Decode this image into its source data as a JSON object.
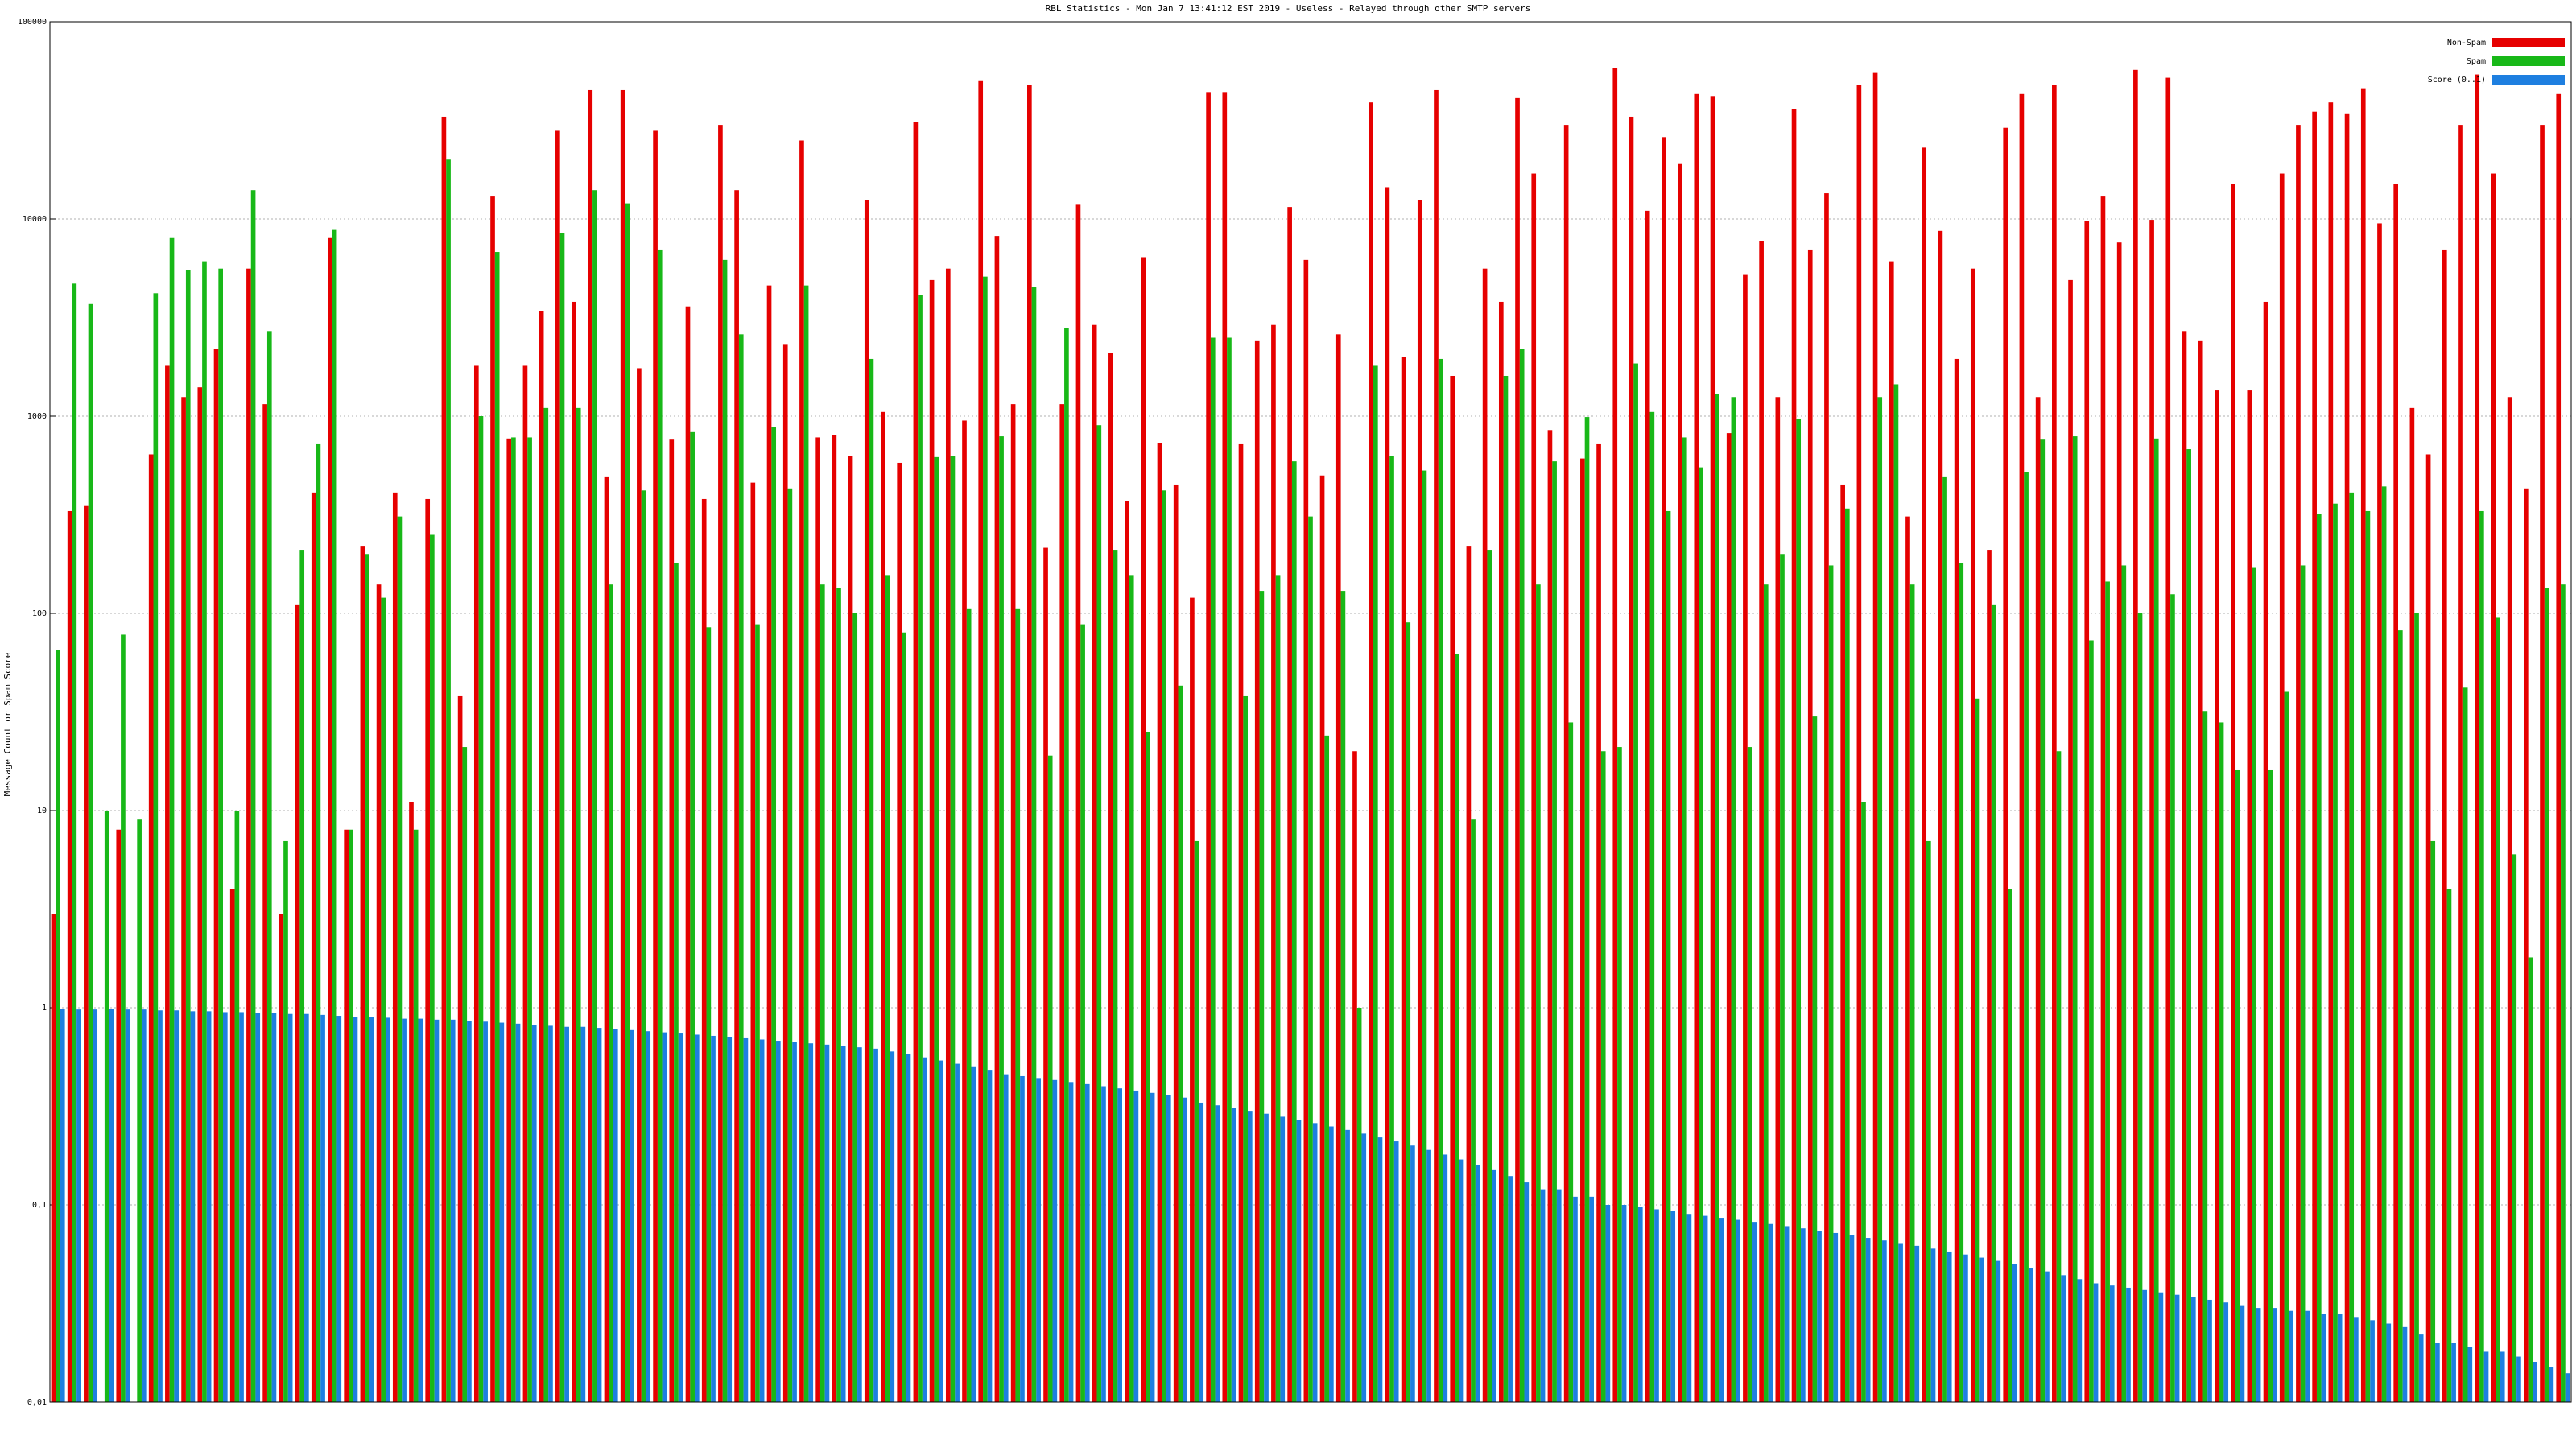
{
  "chart_data": {
    "type": "bar",
    "title": "RBL Statistics - Mon Jan  7 13:41:12 EST 2019 - Useless - Relayed through other SMTP servers",
    "y_label": "Message Count or Spam Score",
    "log_y": true,
    "grid": true,
    "legend": "top-right",
    "ylim": [
      0.01,
      100000
    ],
    "yticks": [
      {
        "value": 0.01,
        "label": "0,01"
      },
      {
        "value": 0.1,
        "label": "0,1"
      },
      1,
      10,
      100,
      1000,
      10000,
      100000
    ],
    "categories": [
      null,
      null,
      null,
      null,
      null,
      null,
      null,
      null,
      null,
      null,
      null,
      null,
      null,
      null,
      null,
      null,
      null,
      null,
      null,
      null,
      null,
      null,
      null,
      null,
      null,
      null,
      null,
      null,
      null,
      null,
      null,
      null,
      null,
      null,
      null,
      null,
      null,
      null,
      null,
      null,
      null,
      null,
      null,
      null,
      null,
      null,
      null,
      null,
      null,
      null,
      null,
      null,
      null,
      null,
      null,
      null,
      null,
      null,
      null,
      null,
      null,
      null,
      null,
      null,
      null,
      null,
      null,
      null,
      null,
      null,
      null,
      null,
      null,
      null,
      null,
      null,
      null,
      null,
      null,
      null,
      null,
      null,
      null,
      null,
      null,
      null,
      null,
      null,
      null,
      null,
      null,
      null,
      null,
      null,
      null,
      null,
      null,
      null,
      null,
      null,
      null,
      null,
      null,
      null,
      null,
      null,
      null,
      null,
      null,
      null,
      null,
      null,
      null,
      null,
      null,
      null,
      null,
      null,
      null,
      null,
      null,
      null,
      null,
      null,
      null,
      null,
      null,
      null,
      null,
      null,
      null,
      null,
      null,
      null,
      null,
      null,
      null,
      null,
      null,
      null,
      null,
      null,
      null,
      null,
      null,
      null,
      null,
      null,
      null,
      null,
      null,
      null,
      null,
      null,
      null
    ],
    "series": [
      {
        "name": "Non-Spam",
        "color": "#e60000",
        "values": [
          3,
          330,
          350,
          null,
          8,
          null,
          640,
          1800,
          1250,
          1400,
          2200,
          4,
          5600,
          1150,
          3,
          110,
          410,
          8000,
          8,
          220,
          140,
          410,
          11,
          380,
          33000,
          38,
          1800,
          13000,
          770,
          1800,
          3400,
          28000,
          3800,
          45000,
          490,
          45000,
          1750,
          28000,
          760,
          3600,
          380,
          30000,
          14000,
          460,
          4600,
          2300,
          25000,
          780,
          800,
          630,
          12500,
          1050,
          580,
          31000,
          4900,
          5600,
          950,
          50000,
          8200,
          1150,
          48000,
          215,
          1150,
          11800,
          2900,
          2100,
          370,
          6400,
          730,
          450,
          120,
          44000,
          44000,
          720,
          2400,
          2900,
          11500,
          6200,
          500,
          2600,
          20,
          39000,
          14500,
          2000,
          12500,
          45000,
          1600,
          220,
          5600,
          3800,
          41000,
          17000,
          850,
          30000,
          610,
          720,
          58000,
          33000,
          11000,
          26000,
          19000,
          43000,
          42000,
          820,
          5200,
          7700,
          1250,
          36000,
          7000,
          13500,
          450,
          48000,
          55000,
          6100,
          310,
          23000,
          8700,
          1950,
          5600,
          210,
          29000,
          43000,
          1250,
          48000,
          4900,
          9800,
          13000,
          7600,
          57000,
          9900,
          52000,
          2700,
          2400,
          1350,
          15000,
          1350,
          3800,
          17000,
          30000,
          35000,
          39000,
          34000,
          46000,
          9500,
          15000,
          1100,
          640,
          7000,
          30000,
          54000,
          17000,
          1250,
          430,
          30000,
          43000
        ]
      },
      {
        "name": "Spam",
        "color": "#18b818",
        "values": [
          65,
          4700,
          3700,
          10,
          78,
          9,
          4200,
          8000,
          5500,
          6100,
          5600,
          10,
          14000,
          2700,
          7,
          210,
          720,
          8800,
          8,
          200,
          120,
          310,
          8,
          250,
          20000,
          21,
          1000,
          6800,
          780,
          780,
          1100,
          8500,
          1100,
          14000,
          140,
          12000,
          420,
          7000,
          180,
          830,
          85,
          6200,
          2600,
          88,
          880,
          430,
          4600,
          140,
          135,
          100,
          1950,
          155,
          80,
          4100,
          620,
          630,
          105,
          5100,
          790,
          105,
          4500,
          19,
          2800,
          88,
          900,
          210,
          155,
          25,
          420,
          43,
          7,
          2500,
          2500,
          38,
          130,
          155,
          590,
          310,
          24,
          130,
          1,
          1800,
          630,
          90,
          530,
          1950,
          62,
          9,
          210,
          1600,
          2200,
          140,
          590,
          28,
          990,
          20,
          21,
          1850,
          1050,
          330,
          780,
          550,
          1300,
          1250,
          21,
          140,
          200,
          970,
          30,
          175,
          340,
          11,
          1250,
          1450,
          140,
          7,
          490,
          180,
          37,
          110,
          4,
          520,
          760,
          20,
          790,
          73,
          145,
          175,
          100,
          770,
          125,
          680,
          32,
          28,
          16,
          170,
          16,
          40,
          175,
          320,
          360,
          410,
          330,
          440,
          82,
          100,
          7,
          4,
          42,
          330,
          95,
          6,
          1.8,
          135,
          140
        ]
      },
      {
        "name": "Score (0..1)",
        "color": "#1e7fe0",
        "values": [
          0.99,
          0.98,
          0.98,
          0.99,
          0.98,
          0.98,
          0.97,
          0.97,
          0.96,
          0.96,
          0.95,
          0.95,
          0.94,
          0.94,
          0.93,
          0.93,
          0.92,
          0.91,
          0.9,
          0.9,
          0.89,
          0.88,
          0.88,
          0.87,
          0.87,
          0.86,
          0.85,
          0.84,
          0.83,
          0.82,
          0.81,
          0.8,
          0.8,
          0.79,
          0.78,
          0.77,
          0.76,
          0.75,
          0.74,
          0.73,
          0.72,
          0.71,
          0.7,
          0.69,
          0.68,
          0.67,
          0.66,
          0.65,
          0.64,
          0.63,
          0.62,
          0.6,
          0.58,
          0.56,
          0.54,
          0.52,
          0.5,
          0.48,
          0.46,
          0.45,
          0.44,
          0.43,
          0.42,
          0.41,
          0.4,
          0.39,
          0.38,
          0.37,
          0.36,
          0.35,
          0.33,
          0.32,
          0.31,
          0.3,
          0.29,
          0.28,
          0.27,
          0.26,
          0.25,
          0.24,
          0.23,
          0.22,
          0.21,
          0.2,
          0.19,
          0.18,
          0.17,
          0.16,
          0.15,
          0.14,
          0.13,
          0.12,
          0.12,
          0.11,
          0.11,
          0.1,
          0.1,
          0.098,
          0.095,
          0.093,
          0.09,
          0.088,
          0.086,
          0.084,
          0.082,
          0.08,
          0.078,
          0.076,
          0.074,
          0.072,
          0.07,
          0.068,
          0.066,
          0.064,
          0.062,
          0.06,
          0.058,
          0.056,
          0.054,
          0.052,
          0.05,
          0.048,
          0.046,
          0.044,
          0.042,
          0.04,
          0.039,
          0.038,
          0.037,
          0.036,
          0.035,
          0.034,
          0.033,
          0.032,
          0.031,
          0.03,
          0.03,
          0.029,
          0.029,
          0.028,
          0.028,
          0.027,
          0.026,
          0.025,
          0.024,
          0.022,
          0.02,
          0.02,
          0.019,
          0.018,
          0.018,
          0.017,
          0.016,
          0.015,
          0.014
        ]
      }
    ]
  }
}
